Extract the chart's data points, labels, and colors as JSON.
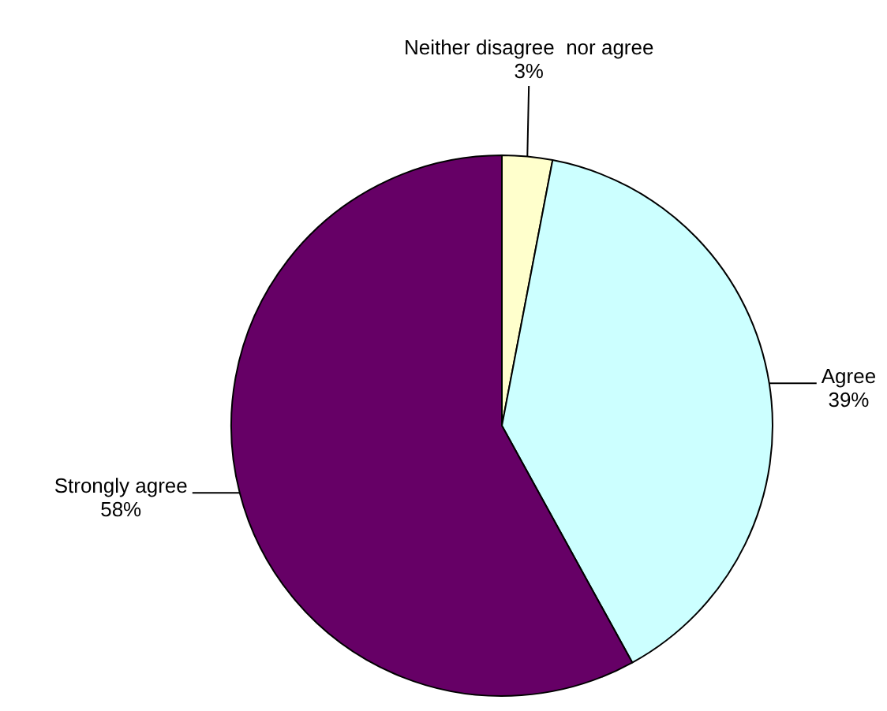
{
  "chart_data": {
    "type": "pie",
    "categories": [
      "Neither disagree  nor agree",
      "Agree",
      "Strongly agree"
    ],
    "values": [
      3,
      39,
      58
    ],
    "colors": [
      "#ffffcc",
      "#ccffff",
      "#660066"
    ],
    "value_labels": [
      "3%",
      "39%",
      "58%"
    ],
    "legend": false
  }
}
